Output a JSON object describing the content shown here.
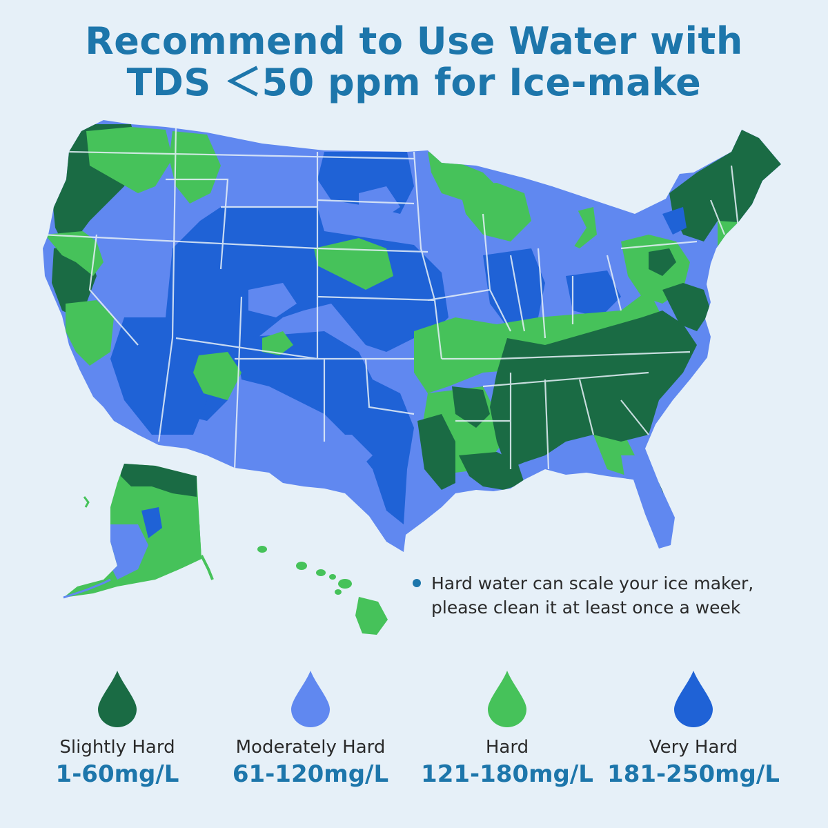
{
  "title": {
    "line1": "Recommend to Use Water with",
    "line2": "TDS ＜50 ppm for Ice-make"
  },
  "note": {
    "line1": "Hard water can scale your ice maker,",
    "line2": "please clean it at least once a week"
  },
  "colors": {
    "slightly_hard": "#1a6b44",
    "moderately_hard": "#6088f0",
    "hard": "#46c25a",
    "very_hard": "#1f62d6",
    "title": "#1d76ab",
    "background": "#e6f0f8"
  },
  "legend": [
    {
      "label": "Slightly Hard",
      "range": "1-60mg/L",
      "icon": "water-drop-icon"
    },
    {
      "label": "Moderately Hard",
      "range": "61-120mg/L",
      "icon": "water-drop-icon"
    },
    {
      "label": "Hard",
      "range": "121-180mg/L",
      "icon": "water-drop-icon"
    },
    {
      "label": "Very Hard",
      "range": "181-250mg/L",
      "icon": "water-drop-icon"
    }
  ]
}
